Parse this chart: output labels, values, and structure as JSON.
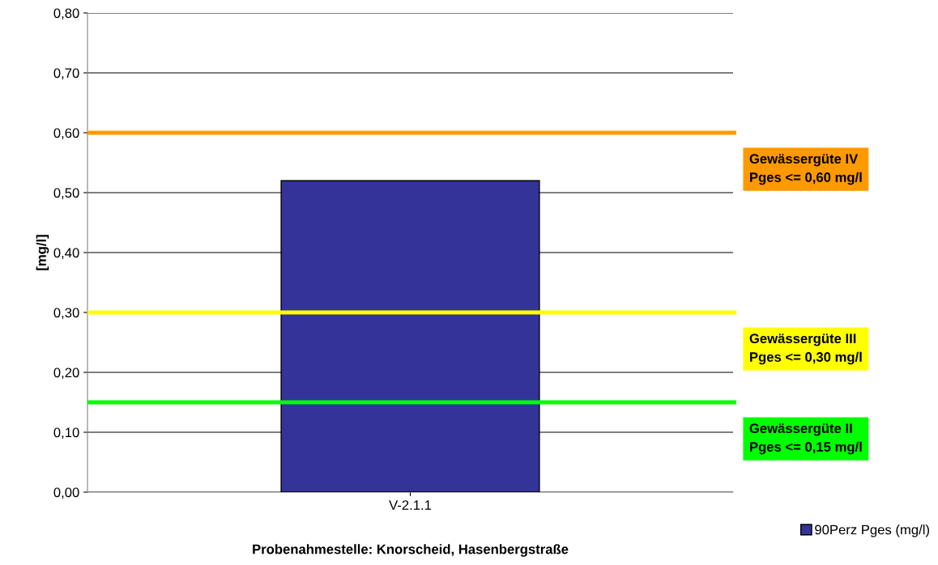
{
  "chart_data": {
    "type": "bar",
    "xlabel": "Probenahmestelle: Knorscheid, Hasenbergstraße",
    "ylabel": "[mg/l]",
    "categories": [
      "V-2.1.1"
    ],
    "series": [
      {
        "name": "90Perz Pges (mg/l)",
        "color": "#333399",
        "values": [
          0.52
        ]
      }
    ],
    "ylim": [
      0,
      0.8
    ],
    "yticks": [
      {
        "value": 0,
        "label": "0,00"
      },
      {
        "value": 0.1,
        "label": "0,10"
      },
      {
        "value": 0.2,
        "label": "0,20"
      },
      {
        "value": 0.3,
        "label": "0,30"
      },
      {
        "value": 0.4,
        "label": "0,40"
      },
      {
        "value": 0.5,
        "label": "0,50"
      },
      {
        "value": 0.6,
        "label": "0,60"
      },
      {
        "value": 0.7,
        "label": "0,70"
      },
      {
        "value": 0.8,
        "label": "0,80"
      }
    ],
    "ref_lines": [
      {
        "axis": "y",
        "value": 0.6,
        "label": "Gewässergüte IV\nPges <= 0,60 mg/l",
        "color": "#ff9900"
      },
      {
        "axis": "y",
        "value": 0.3,
        "label": "Gewässergüte III\nPges <= 0,30 mg/l",
        "color": "#ffff00"
      },
      {
        "axis": "y",
        "value": 0.15,
        "label": "Gewässergüte II\nPges <= 0,15 mg/l",
        "color": "#00ff00"
      }
    ],
    "grid": "y",
    "legend": "bottom right"
  }
}
